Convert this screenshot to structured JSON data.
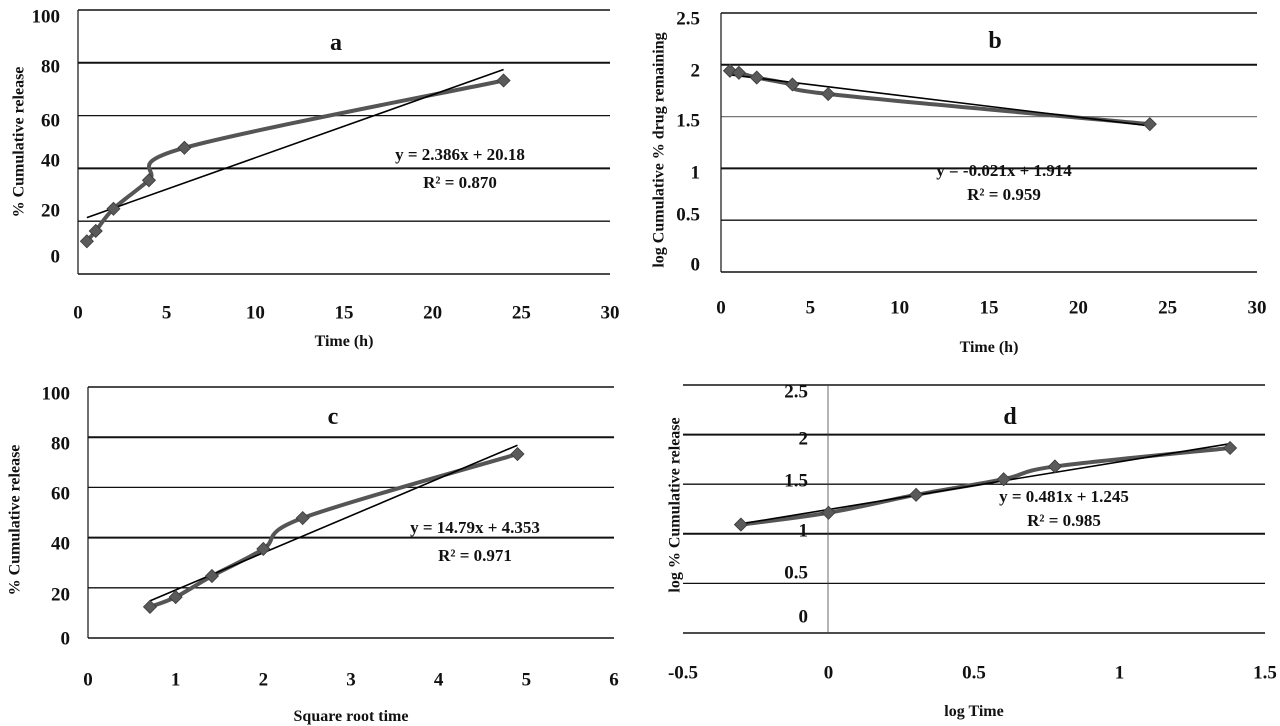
{
  "figure": {
    "description": "In-vitro drug release kinetic model fits (four panels)"
  },
  "colors": {
    "series": "#555555",
    "marker": "#5a5a5a",
    "trendline": "#000000",
    "grid_dark": "#111111",
    "grid_light": "#777777",
    "text": "#111111"
  },
  "chart_data": [
    {
      "id": "a",
      "type": "line",
      "title": "a",
      "xlabel": "Time (h)",
      "ylabel": "% Cumulative release",
      "xlim": [
        0,
        30
      ],
      "ylim": [
        0,
        100
      ],
      "xticks": [
        "0",
        "5",
        "10",
        "15",
        "20",
        "25",
        "30"
      ],
      "yticks": [
        "100",
        "80",
        "60",
        "40",
        "20",
        "0"
      ],
      "grid": true,
      "series": [
        {
          "name": "Cumulative release",
          "x": [
            0.5,
            1,
            2,
            4,
            6,
            24
          ],
          "y": [
            12.4,
            16.3,
            24.7,
            35.5,
            47.8,
            73.3
          ],
          "marker": "diamond",
          "smooth": true
        }
      ],
      "trendline": {
        "slope": 2.386,
        "intercept": 20.18,
        "x_range": [
          0.5,
          24
        ]
      },
      "equation": "y = 2.386x + 20.18",
      "r_squared": "R² = 0.870"
    },
    {
      "id": "b",
      "type": "line",
      "title": "b",
      "xlabel": "Time (h)",
      "ylabel": "log Cumulative % drug remaining",
      "xlim": [
        0,
        30
      ],
      "ylim": [
        0,
        2.5
      ],
      "xticks": [
        "0",
        "5",
        "10",
        "15",
        "20",
        "25",
        "30"
      ],
      "yticks": [
        "2.5",
        "2",
        "1.5",
        "1",
        "0.5",
        "0"
      ],
      "grid": true,
      "series": [
        {
          "name": "log % remaining",
          "x": [
            0.5,
            1,
            2,
            4,
            6,
            24
          ],
          "y": [
            1.942,
            1.923,
            1.877,
            1.81,
            1.718,
            1.427
          ],
          "marker": "diamond",
          "smooth": true
        }
      ],
      "trendline": {
        "slope": -0.021,
        "intercept": 1.914,
        "x_range": [
          0.5,
          24
        ]
      },
      "equation": "y = -0.021x + 1.914",
      "r_squared": "R² = 0.959"
    },
    {
      "id": "c",
      "type": "line",
      "title": "c",
      "xlabel": "Square root time",
      "ylabel": "% Cumulative release",
      "xlim": [
        0,
        6
      ],
      "ylim": [
        0,
        100
      ],
      "xticks": [
        "0",
        "1",
        "2",
        "3",
        "4",
        "5",
        "6"
      ],
      "yticks": [
        "100",
        "80",
        "60",
        "40",
        "20",
        "0"
      ],
      "grid": true,
      "series": [
        {
          "name": "Cumulative release",
          "x": [
            0.707,
            1,
            1.414,
            2,
            2.449,
            4.899
          ],
          "y": [
            12.4,
            16.3,
            24.7,
            35.5,
            47.8,
            73.3
          ],
          "marker": "diamond",
          "smooth": true
        }
      ],
      "trendline": {
        "slope": 14.79,
        "intercept": 4.353,
        "x_range": [
          0.707,
          4.899
        ]
      },
      "equation": "y = 14.79x + 4.353",
      "r_squared": "R² = 0.971"
    },
    {
      "id": "d",
      "type": "line",
      "title": "d",
      "xlabel": "log Time",
      "ylabel": "log % Cumulative release",
      "xlim": [
        -0.5,
        1.5
      ],
      "ylim": [
        0,
        2.5
      ],
      "xticks": [
        "-0.5",
        "0",
        "0.5",
        "1",
        "1.5"
      ],
      "yticks": [
        "2.5",
        "2",
        "1.5",
        "1",
        "0.5",
        "0"
      ],
      "grid": true,
      "series": [
        {
          "name": "log cumulative release",
          "x": [
            -0.301,
            0,
            0.301,
            0.602,
            0.778,
            1.38
          ],
          "y": [
            1.093,
            1.212,
            1.393,
            1.55,
            1.679,
            1.865
          ],
          "marker": "diamond",
          "smooth": true
        }
      ],
      "trendline": {
        "slope": 0.481,
        "intercept": 1.245,
        "x_range": [
          -0.301,
          1.38
        ]
      },
      "equation": "y = 0.481x + 1.245",
      "r_squared": "R² = 0.985"
    }
  ]
}
